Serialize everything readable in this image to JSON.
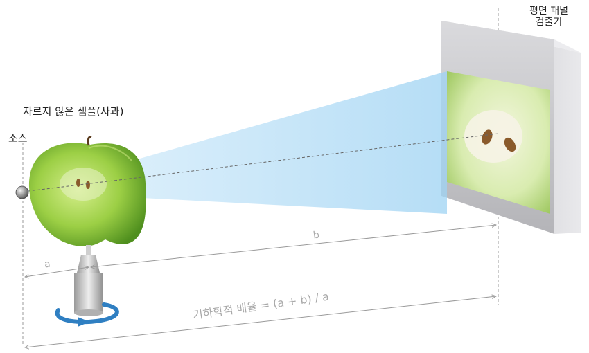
{
  "labels": {
    "sample": "자르지 않은 샘플(사과)",
    "source": "소스",
    "detector_line1": "평면 패널",
    "detector_line2": "검출기",
    "dist_a": "a",
    "dist_b": "b",
    "magnification": "기하학적 배율 = (a + b) / a"
  },
  "colors": {
    "beam": "#a9d8f5",
    "apple": "#8cc63f",
    "detector_frame": "#cfcfd2",
    "dimension_line": "#9a9a9a",
    "rotation_arrow": "#2f7fc2"
  }
}
